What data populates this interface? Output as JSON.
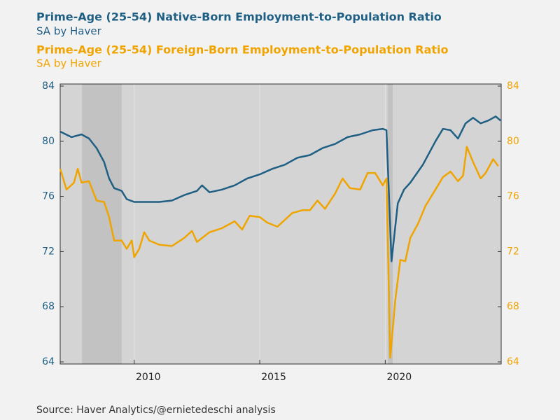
{
  "chart_data": {
    "type": "line",
    "titles": [
      {
        "text": "Prime-Age (25-54) Native-Born Employment-to-Population Ratio",
        "color": "#1f5f84"
      },
      {
        "text": "SA by Haver",
        "color": "#1f5f84"
      },
      {
        "text": "Prime-Age (25-54) Foreign-Born Employment-to-Population Ratio",
        "color": "#f0a400"
      },
      {
        "text": "SA by Haver",
        "color": "#f0a400"
      }
    ],
    "source": "Source:  Haver Analytics/@ernietedeschi analysis",
    "xlim": [
      2007.05,
      2024.62
    ],
    "xticks": [
      2010,
      2015,
      2020
    ],
    "ylim": [
      64,
      84
    ],
    "yticks": [
      64,
      68,
      72,
      76,
      80,
      84
    ],
    "y2lim": [
      64,
      84
    ],
    "y2ticks": [
      64,
      68,
      72,
      76,
      80,
      84
    ],
    "shaded_ranges": [
      [
        2007.92,
        2009.5
      ],
      [
        2020.1,
        2020.3
      ]
    ],
    "grid": true,
    "series": [
      {
        "name": "Prime-Age (25-54) Native-Born Employment-to-Population Ratio",
        "color": "#1f5f84",
        "x": [
          2007.05,
          2007.5,
          2007.9,
          2008.2,
          2008.5,
          2008.8,
          2009.0,
          2009.2,
          2009.5,
          2009.7,
          2010.0,
          2010.5,
          2011.0,
          2011.5,
          2012.0,
          2012.5,
          2012.7,
          2013.0,
          2013.5,
          2014.0,
          2014.5,
          2015.0,
          2015.5,
          2016.0,
          2016.5,
          2017.0,
          2017.5,
          2018.0,
          2018.5,
          2019.0,
          2019.5,
          2019.9,
          2020.05,
          2020.25,
          2020.5,
          2020.75,
          2021.0,
          2021.5,
          2022.0,
          2022.3,
          2022.6,
          2022.9,
          2023.2,
          2023.5,
          2023.8,
          2024.1,
          2024.4,
          2024.6
        ],
        "values": [
          80.7,
          80.3,
          80.5,
          80.2,
          79.5,
          78.5,
          77.3,
          76.6,
          76.4,
          75.8,
          75.6,
          75.6,
          75.6,
          75.7,
          76.1,
          76.4,
          76.8,
          76.3,
          76.5,
          76.8,
          77.3,
          77.6,
          78.0,
          78.3,
          78.8,
          79.0,
          79.5,
          79.8,
          80.3,
          80.5,
          80.8,
          80.9,
          80.8,
          71.3,
          75.5,
          76.5,
          77.0,
          78.3,
          80.0,
          80.9,
          80.8,
          80.2,
          81.3,
          81.7,
          81.3,
          81.5,
          81.8,
          81.5
        ]
      },
      {
        "name": "Prime-Age (25-54) Foreign-Born Employment-to-Population Ratio",
        "color": "#f0a400",
        "axis": "y2",
        "x": [
          2007.05,
          2007.3,
          2007.6,
          2007.75,
          2007.9,
          2008.2,
          2008.5,
          2008.8,
          2009.0,
          2009.2,
          2009.5,
          2009.7,
          2009.9,
          2010.0,
          2010.2,
          2010.4,
          2010.6,
          2011.0,
          2011.5,
          2012.0,
          2012.3,
          2012.5,
          2013.0,
          2013.5,
          2014.0,
          2014.3,
          2014.6,
          2015.0,
          2015.3,
          2015.7,
          2016.0,
          2016.3,
          2016.7,
          2017.0,
          2017.3,
          2017.6,
          2018.0,
          2018.3,
          2018.6,
          2019.0,
          2019.3,
          2019.6,
          2019.9,
          2020.05,
          2020.2,
          2020.4,
          2020.6,
          2020.8,
          2021.0,
          2021.3,
          2021.6,
          2022.0,
          2022.3,
          2022.6,
          2022.9,
          2023.1,
          2023.25,
          2023.5,
          2023.8,
          2024.0,
          2024.3,
          2024.5
        ],
        "values": [
          78.0,
          76.5,
          77.0,
          78.0,
          77.0,
          77.1,
          75.7,
          75.6,
          74.5,
          72.8,
          72.8,
          72.2,
          72.8,
          71.6,
          72.2,
          73.4,
          72.8,
          72.5,
          72.4,
          73.0,
          73.5,
          72.7,
          73.4,
          73.7,
          74.2,
          73.6,
          74.6,
          74.5,
          74.1,
          73.8,
          74.3,
          74.8,
          75.0,
          75.0,
          75.7,
          75.1,
          76.2,
          77.3,
          76.6,
          76.5,
          77.7,
          77.7,
          76.8,
          77.3,
          64.3,
          68.5,
          71.4,
          71.3,
          73.0,
          74.0,
          75.3,
          76.5,
          77.4,
          77.8,
          77.1,
          77.5,
          79.6,
          78.5,
          77.3,
          77.7,
          78.7,
          78.2
        ]
      }
    ]
  }
}
